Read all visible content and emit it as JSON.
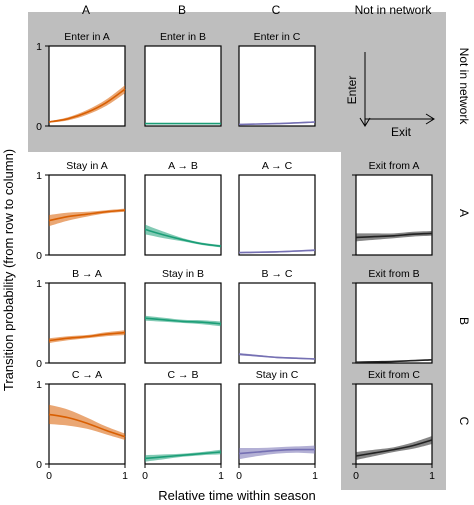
{
  "chart_data": {
    "type": "line",
    "xlabel": "Relative time within season",
    "ylabel": "Transition probability (from row to column)",
    "columns": [
      "A",
      "B",
      "C",
      "Not in network"
    ],
    "rows": [
      "Not in network",
      "A",
      "B",
      "C"
    ],
    "xlim": [
      0,
      1
    ],
    "ylim": [
      0,
      1
    ],
    "xticks": [
      "0",
      "1"
    ],
    "yticks": [
      "0",
      "1"
    ],
    "colors": {
      "A": "#d95f02",
      "B": "#1b9e77",
      "C": "#7570b3",
      "Not in network": "#222222",
      "background": "#bebebe"
    },
    "legend_arrows": {
      "enter": "Enter",
      "exit": "Exit"
    },
    "panels": [
      {
        "row": "Not in network",
        "col": "A",
        "title": "Enter in A",
        "x": [
          0,
          0.25,
          0.5,
          0.75,
          1
        ],
        "y": [
          0.05,
          0.09,
          0.17,
          0.29,
          0.46
        ],
        "band": [
          0.01,
          0.02,
          0.03,
          0.04,
          0.05
        ]
      },
      {
        "row": "Not in network",
        "col": "B",
        "title": "Enter in B",
        "x": [
          0,
          0.5,
          1
        ],
        "y": [
          0.03,
          0.03,
          0.03
        ],
        "band": [
          0.008,
          0.008,
          0.008
        ]
      },
      {
        "row": "Not in network",
        "col": "C",
        "title": "Enter in C",
        "x": [
          0,
          0.5,
          1
        ],
        "y": [
          0.02,
          0.03,
          0.05
        ],
        "band": [
          0.006,
          0.007,
          0.01
        ]
      },
      {
        "row": "A",
        "col": "A",
        "title": "Stay in A",
        "x": [
          0,
          0.25,
          0.5,
          0.75,
          1
        ],
        "y": [
          0.43,
          0.48,
          0.51,
          0.54,
          0.56
        ],
        "band": [
          0.07,
          0.05,
          0.03,
          0.02,
          0.02
        ]
      },
      {
        "row": "A",
        "col": "B",
        "title": "A → B",
        "x": [
          0,
          0.25,
          0.5,
          0.75,
          1
        ],
        "y": [
          0.32,
          0.25,
          0.19,
          0.14,
          0.11
        ],
        "band": [
          0.06,
          0.04,
          0.02,
          0.015,
          0.015
        ]
      },
      {
        "row": "A",
        "col": "C",
        "title": "A → C",
        "x": [
          0,
          0.5,
          1
        ],
        "y": [
          0.03,
          0.04,
          0.06
        ],
        "band": [
          0.008,
          0.01,
          0.012
        ]
      },
      {
        "row": "A",
        "col": "Not in network",
        "title": "Exit from A",
        "x": [
          0,
          0.25,
          0.5,
          0.75,
          1
        ],
        "y": [
          0.22,
          0.23,
          0.24,
          0.26,
          0.27
        ],
        "band": [
          0.05,
          0.04,
          0.03,
          0.03,
          0.03
        ]
      },
      {
        "row": "B",
        "col": "A",
        "title": "B → A",
        "x": [
          0,
          0.25,
          0.5,
          0.75,
          1
        ],
        "y": [
          0.28,
          0.31,
          0.33,
          0.36,
          0.38
        ],
        "band": [
          0.03,
          0.025,
          0.02,
          0.025,
          0.03
        ]
      },
      {
        "row": "B",
        "col": "B",
        "title": "Stay in B",
        "x": [
          0,
          0.25,
          0.5,
          0.75,
          1
        ],
        "y": [
          0.56,
          0.54,
          0.52,
          0.51,
          0.49
        ],
        "band": [
          0.03,
          0.025,
          0.02,
          0.025,
          0.03
        ]
      },
      {
        "row": "B",
        "col": "C",
        "title": "B → C",
        "x": [
          0,
          0.25,
          0.5,
          0.75,
          1
        ],
        "y": [
          0.11,
          0.09,
          0.07,
          0.06,
          0.05
        ],
        "band": [
          0.015,
          0.012,
          0.01,
          0.01,
          0.01
        ]
      },
      {
        "row": "B",
        "col": "Not in network",
        "title": "Exit from B",
        "x": [
          0,
          0.5,
          1
        ],
        "y": [
          0.01,
          0.02,
          0.04
        ],
        "band": [
          0.005,
          0.006,
          0.008
        ]
      },
      {
        "row": "C",
        "col": "A",
        "title": "C → A",
        "x": [
          0,
          0.25,
          0.5,
          0.75,
          1
        ],
        "y": [
          0.62,
          0.58,
          0.51,
          0.42,
          0.34
        ],
        "band": [
          0.12,
          0.1,
          0.07,
          0.05,
          0.04
        ]
      },
      {
        "row": "C",
        "col": "B",
        "title": "C → B",
        "x": [
          0,
          0.25,
          0.5,
          0.75,
          1
        ],
        "y": [
          0.07,
          0.09,
          0.11,
          0.13,
          0.15
        ],
        "band": [
          0.04,
          0.03,
          0.02,
          0.02,
          0.03
        ]
      },
      {
        "row": "C",
        "col": "C",
        "title": "Stay in C",
        "x": [
          0,
          0.25,
          0.5,
          0.75,
          1
        ],
        "y": [
          0.13,
          0.15,
          0.17,
          0.18,
          0.18
        ],
        "band": [
          0.07,
          0.05,
          0.04,
          0.04,
          0.05
        ]
      },
      {
        "row": "C",
        "col": "Not in network",
        "title": "Exit from C",
        "x": [
          0,
          0.25,
          0.5,
          0.75,
          1
        ],
        "y": [
          0.1,
          0.14,
          0.18,
          0.23,
          0.3
        ],
        "band": [
          0.05,
          0.04,
          0.03,
          0.04,
          0.05
        ]
      }
    ]
  }
}
